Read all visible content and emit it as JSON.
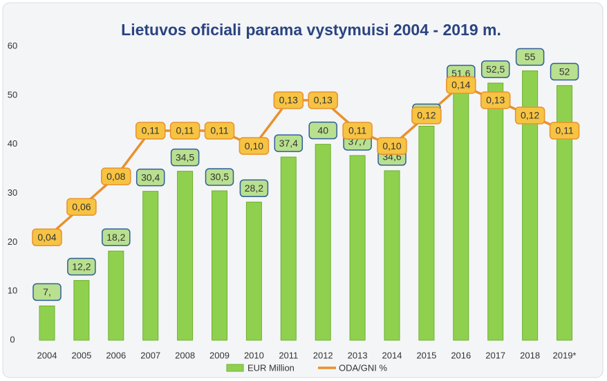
{
  "chart_data": {
    "type": "bar",
    "title": "Lietuvos oficiali parama vystymuisi 2004 - 2019 m.",
    "categories": [
      "2004",
      "2005",
      "2006",
      "2007",
      "2008",
      "2009",
      "2010",
      "2011",
      "2012",
      "2013",
      "2014",
      "2015",
      "2016",
      "2017",
      "2018",
      "2019*"
    ],
    "series": [
      {
        "name": "EUR Million",
        "type": "bar",
        "color": "#8fd14f",
        "values": [
          7,
          12.2,
          18.2,
          30.4,
          34.5,
          30.5,
          28.2,
          37.4,
          40,
          37.7,
          34.6,
          43.7,
          51.6,
          52.5,
          55,
          52
        ],
        "value_labels": [
          "7,",
          "12,2",
          "18,2",
          "30,4",
          "34,5",
          "30,5",
          "28,2",
          "37,4",
          "40",
          "37,7",
          "34,6",
          "43,7",
          "51,6",
          "52,5",
          "55",
          "52"
        ]
      },
      {
        "name": "ODA/GNI %",
        "type": "line",
        "color": "#e8912d",
        "values": [
          0.04,
          0.06,
          0.08,
          0.11,
          0.11,
          0.11,
          0.1,
          0.13,
          0.13,
          0.11,
          0.1,
          0.12,
          0.14,
          0.13,
          0.12,
          0.11
        ],
        "value_labels": [
          "0,04",
          "0,06",
          "0,08",
          "0,11",
          "0,11",
          "0,11",
          "0,10",
          "0,13",
          "0,13",
          "0,11",
          "0,10",
          "0,12",
          "0,14",
          "0,13",
          "0,12",
          "0,11"
        ]
      }
    ],
    "ylim": [
      0,
      60
    ],
    "yticks": [
      0,
      10,
      20,
      30,
      40,
      50,
      60
    ],
    "grid": false
  }
}
